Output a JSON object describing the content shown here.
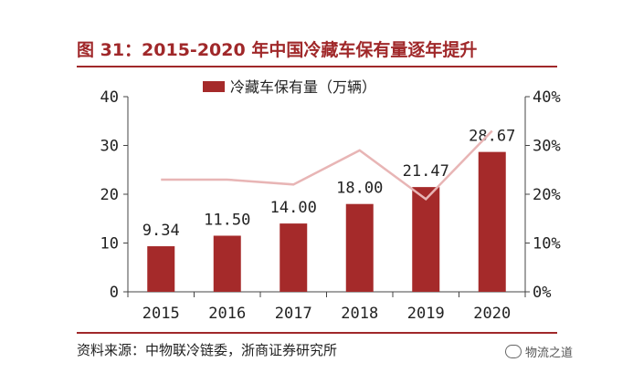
{
  "figure": {
    "title": "图 31：2015-2020 年中国冷藏车保有量逐年提升",
    "source": "资料来源：中物联冷链委，浙商证券研究所",
    "watermark": "物流之道"
  },
  "colors": {
    "bar": "#a52a2a",
    "line": "#e8b5b5",
    "title": "#a0282a",
    "axis": "#444444"
  },
  "chart_data": {
    "type": "bar",
    "categories": [
      "2015",
      "2016",
      "2017",
      "2018",
      "2019",
      "2020"
    ],
    "series": [
      {
        "name": "冷藏车保有量（万辆）",
        "type": "bar",
        "axis": "left",
        "values": [
          9.34,
          11.5,
          14.0,
          18.0,
          21.47,
          28.67
        ],
        "labels": [
          "9.34",
          "11.50",
          "14.00",
          "18.00",
          "21.47",
          "28.67"
        ]
      },
      {
        "type": "line",
        "axis": "right",
        "values": [
          0.23,
          0.23,
          0.22,
          0.29,
          0.19,
          0.33
        ]
      }
    ],
    "ylim": [
      0,
      40
    ],
    "yticks": [
      "0",
      "10",
      "20",
      "30",
      "40"
    ],
    "y2lim": [
      0,
      0.4
    ],
    "y2ticks": [
      "0%",
      "10%",
      "20%",
      "30%",
      "40%"
    ],
    "legend": "top",
    "grid": false
  }
}
